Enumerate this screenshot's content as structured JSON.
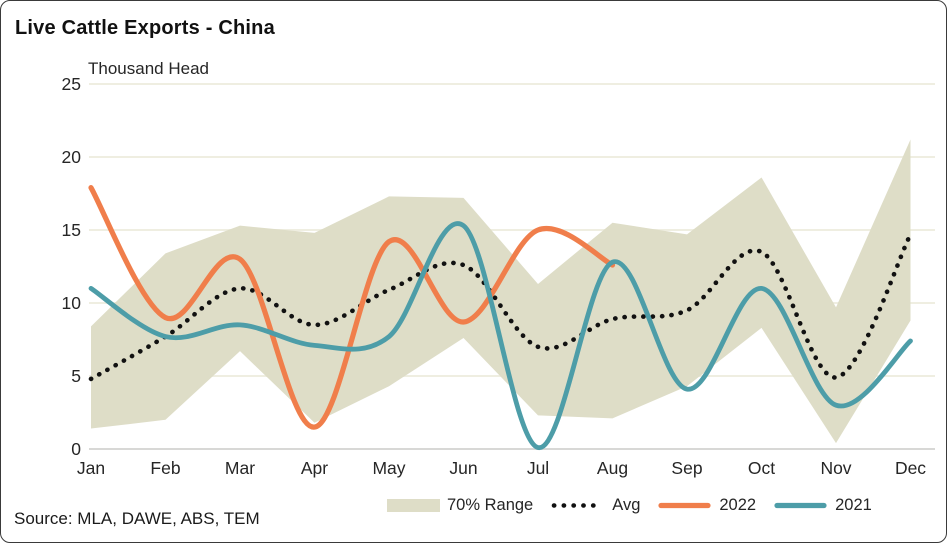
{
  "title": "Live Cattle Exports - China",
  "source": "Source: MLA, DAWE, ABS, TEM",
  "chart_data": {
    "type": "line",
    "title": "Live Cattle Exports - China",
    "xlabel": "",
    "ylabel": "Thousand Head",
    "ylim": [
      0,
      25
    ],
    "yticks": [
      0,
      5,
      10,
      15,
      20,
      25
    ],
    "grid": true,
    "legend_position": "bottom",
    "categories": [
      "Jan",
      "Feb",
      "Mar",
      "Apr",
      "May",
      "Jun",
      "Jul",
      "Aug",
      "Sep",
      "Oct",
      "Nov",
      "Dec"
    ],
    "band": {
      "name": "70% Range",
      "color": "#DEDDC7",
      "upper": [
        8.4,
        13.4,
        15.3,
        14.8,
        17.3,
        17.2,
        11.3,
        15.5,
        14.7,
        18.6,
        9.7,
        21.2
      ],
      "lower": [
        1.4,
        2.0,
        6.7,
        1.8,
        4.3,
        7.6,
        2.3,
        2.1,
        4.3,
        8.3,
        0.4,
        8.8
      ]
    },
    "series": [
      {
        "name": "Avg",
        "style": "dotted",
        "color": "#111111",
        "values": [
          4.8,
          7.7,
          11.0,
          8.5,
          10.9,
          12.6,
          7.0,
          8.9,
          9.5,
          13.5,
          4.9,
          14.7
        ]
      },
      {
        "name": "2022",
        "style": "solid",
        "color": "#F07E4B",
        "values": [
          17.9,
          9.0,
          13.0,
          1.5,
          14.2,
          8.7,
          15.0,
          12.6
        ]
      },
      {
        "name": "2021",
        "style": "solid",
        "color": "#4D9DA8",
        "values": [
          11.0,
          7.7,
          8.5,
          7.1,
          7.7,
          15.3,
          0.1,
          12.8,
          4.1,
          11.0,
          3.0,
          7.4
        ]
      }
    ],
    "gridline_color": "#EFEEE1",
    "zero_gridline_color": "#D8D8D6"
  }
}
